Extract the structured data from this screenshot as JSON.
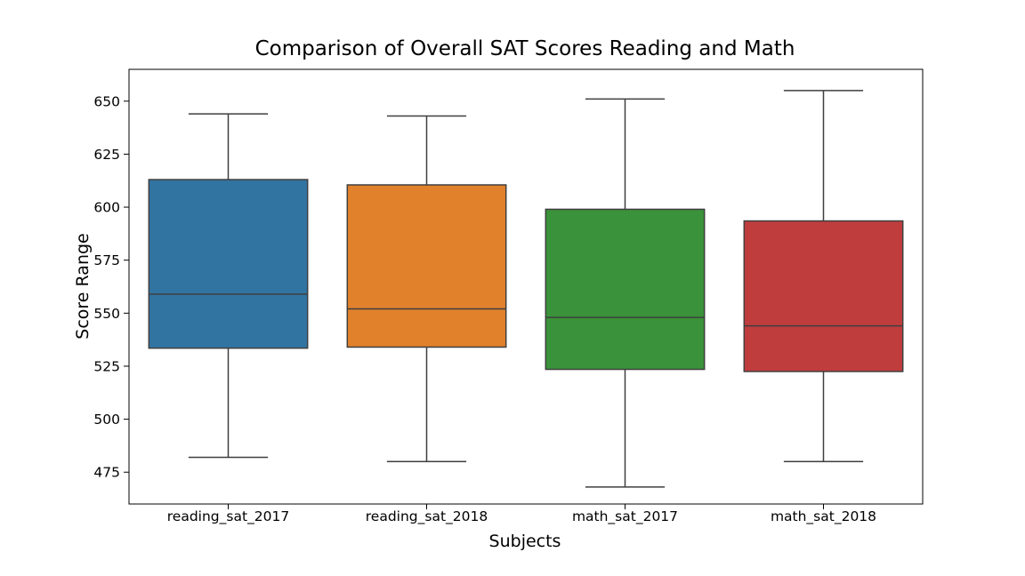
{
  "chart_data": {
    "type": "box",
    "title": "Comparison of Overall SAT Scores Reading and Math",
    "xlabel": "Subjects",
    "ylabel": "Score Range",
    "ylim": [
      460,
      665
    ],
    "yticks": [
      475,
      500,
      525,
      550,
      575,
      600,
      625,
      650
    ],
    "grid": false,
    "categories": [
      "reading_sat_2017",
      "reading_sat_2018",
      "math_sat_2017",
      "math_sat_2018"
    ],
    "boxes": [
      {
        "category": "reading_sat_2017",
        "whisker_low": 482,
        "q1": 533.5,
        "median": 559,
        "q3": 613,
        "whisker_high": 644,
        "color": "#3274a1"
      },
      {
        "category": "reading_sat_2018",
        "whisker_low": 480,
        "q1": 534,
        "median": 552,
        "q3": 610.5,
        "whisker_high": 643,
        "color": "#e1812c"
      },
      {
        "category": "math_sat_2017",
        "whisker_low": 468,
        "q1": 523.5,
        "median": 548,
        "q3": 599,
        "whisker_high": 651,
        "color": "#3a923a"
      },
      {
        "category": "math_sat_2018",
        "whisker_low": 480,
        "q1": 522.5,
        "median": 544,
        "q3": 593.5,
        "whisker_high": 655,
        "color": "#c03d3e"
      }
    ]
  }
}
